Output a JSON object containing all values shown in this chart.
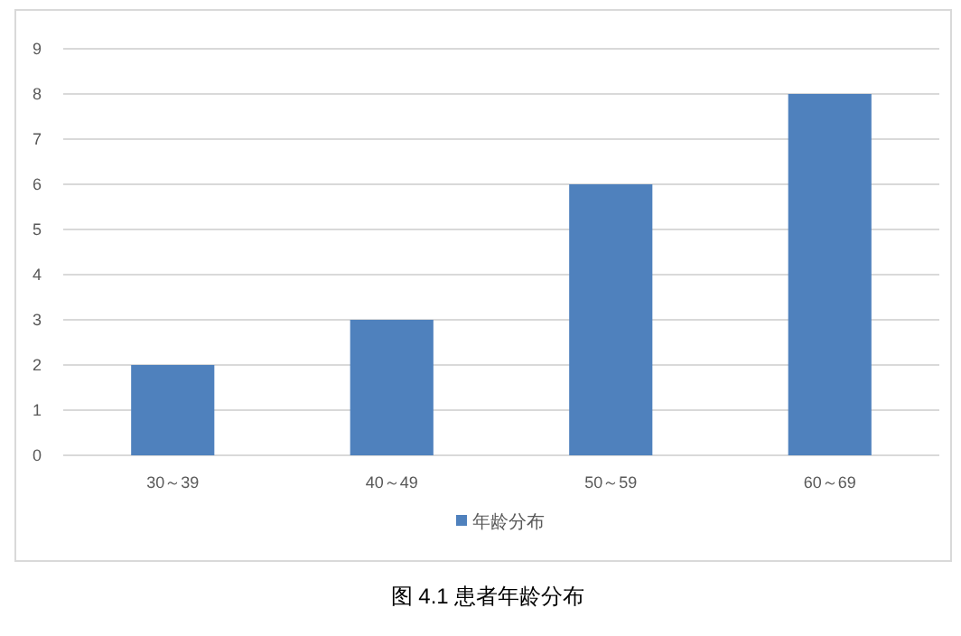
{
  "chart_data": {
    "type": "bar",
    "title": "图 4.1  患者年龄分布",
    "categories": [
      "30～39",
      "40～49",
      "50～59",
      "60～69"
    ],
    "series": [
      {
        "name": "年龄分布",
        "color": "#4f81bd",
        "values": [
          2,
          3,
          6,
          8
        ]
      }
    ],
    "ylim": [
      0,
      9
    ],
    "yticks": [
      0,
      1,
      2,
      3,
      4,
      5,
      6,
      7,
      8,
      9
    ],
    "grid": "y",
    "legend": "bottom"
  }
}
